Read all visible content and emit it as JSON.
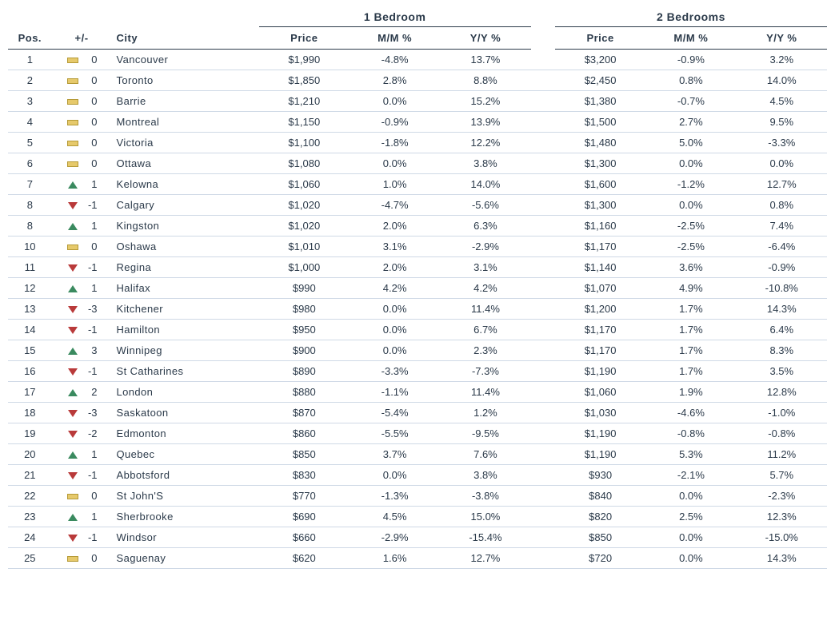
{
  "headers": {
    "group1": "1 Bedroom",
    "group2": "2 Bedrooms",
    "pos": "Pos.",
    "pm": "+/-",
    "city": "City",
    "price": "Price",
    "mm": "M/M %",
    "yy": "Y/Y %"
  },
  "styling": {
    "font_family": "Verdana",
    "text_color": "#2b3a4a",
    "row_border_color": "#cfd9e6",
    "header_border_color": "#2b3a4a",
    "icon_flat_fill": "#e6c96b",
    "icon_flat_border": "#b59a36",
    "icon_up_color": "#3a8a5f",
    "icon_down_color": "#b93a3a",
    "font_size_body": 13,
    "font_size_group_header": 14
  },
  "rows": [
    {
      "pos": "1",
      "dir": "flat",
      "delta": "0",
      "city": "Vancouver",
      "p1": "$1,990",
      "mm1": "-4.8%",
      "yy1": "13.7%",
      "p2": "$3,200",
      "mm2": "-0.9%",
      "yy2": "3.2%"
    },
    {
      "pos": "2",
      "dir": "flat",
      "delta": "0",
      "city": "Toronto",
      "p1": "$1,850",
      "mm1": "2.8%",
      "yy1": "8.8%",
      "p2": "$2,450",
      "mm2": "0.8%",
      "yy2": "14.0%"
    },
    {
      "pos": "3",
      "dir": "flat",
      "delta": "0",
      "city": "Barrie",
      "p1": "$1,210",
      "mm1": "0.0%",
      "yy1": "15.2%",
      "p2": "$1,380",
      "mm2": "-0.7%",
      "yy2": "4.5%"
    },
    {
      "pos": "4",
      "dir": "flat",
      "delta": "0",
      "city": "Montreal",
      "p1": "$1,150",
      "mm1": "-0.9%",
      "yy1": "13.9%",
      "p2": "$1,500",
      "mm2": "2.7%",
      "yy2": "9.5%"
    },
    {
      "pos": "5",
      "dir": "flat",
      "delta": "0",
      "city": "Victoria",
      "p1": "$1,100",
      "mm1": "-1.8%",
      "yy1": "12.2%",
      "p2": "$1,480",
      "mm2": "5.0%",
      "yy2": "-3.3%"
    },
    {
      "pos": "6",
      "dir": "flat",
      "delta": "0",
      "city": "Ottawa",
      "p1": "$1,080",
      "mm1": "0.0%",
      "yy1": "3.8%",
      "p2": "$1,300",
      "mm2": "0.0%",
      "yy2": "0.0%"
    },
    {
      "pos": "7",
      "dir": "up",
      "delta": "1",
      "city": "Kelowna",
      "p1": "$1,060",
      "mm1": "1.0%",
      "yy1": "14.0%",
      "p2": "$1,600",
      "mm2": "-1.2%",
      "yy2": "12.7%"
    },
    {
      "pos": "8",
      "dir": "down",
      "delta": "-1",
      "city": "Calgary",
      "p1": "$1,020",
      "mm1": "-4.7%",
      "yy1": "-5.6%",
      "p2": "$1,300",
      "mm2": "0.0%",
      "yy2": "0.8%"
    },
    {
      "pos": "8",
      "dir": "up",
      "delta": "1",
      "city": "Kingston",
      "p1": "$1,020",
      "mm1": "2.0%",
      "yy1": "6.3%",
      "p2": "$1,160",
      "mm2": "-2.5%",
      "yy2": "7.4%"
    },
    {
      "pos": "10",
      "dir": "flat",
      "delta": "0",
      "city": "Oshawa",
      "p1": "$1,010",
      "mm1": "3.1%",
      "yy1": "-2.9%",
      "p2": "$1,170",
      "mm2": "-2.5%",
      "yy2": "-6.4%"
    },
    {
      "pos": "11",
      "dir": "down",
      "delta": "-1",
      "city": "Regina",
      "p1": "$1,000",
      "mm1": "2.0%",
      "yy1": "3.1%",
      "p2": "$1,140",
      "mm2": "3.6%",
      "yy2": "-0.9%"
    },
    {
      "pos": "12",
      "dir": "up",
      "delta": "1",
      "city": "Halifax",
      "p1": "$990",
      "mm1": "4.2%",
      "yy1": "4.2%",
      "p2": "$1,070",
      "mm2": "4.9%",
      "yy2": "-10.8%"
    },
    {
      "pos": "13",
      "dir": "down",
      "delta": "-3",
      "city": "Kitchener",
      "p1": "$980",
      "mm1": "0.0%",
      "yy1": "11.4%",
      "p2": "$1,200",
      "mm2": "1.7%",
      "yy2": "14.3%"
    },
    {
      "pos": "14",
      "dir": "down",
      "delta": "-1",
      "city": "Hamilton",
      "p1": "$950",
      "mm1": "0.0%",
      "yy1": "6.7%",
      "p2": "$1,170",
      "mm2": "1.7%",
      "yy2": "6.4%"
    },
    {
      "pos": "15",
      "dir": "up",
      "delta": "3",
      "city": "Winnipeg",
      "p1": "$900",
      "mm1": "0.0%",
      "yy1": "2.3%",
      "p2": "$1,170",
      "mm2": "1.7%",
      "yy2": "8.3%"
    },
    {
      "pos": "16",
      "dir": "down",
      "delta": "-1",
      "city": "St Catharines",
      "p1": "$890",
      "mm1": "-3.3%",
      "yy1": "-7.3%",
      "p2": "$1,190",
      "mm2": "1.7%",
      "yy2": "3.5%"
    },
    {
      "pos": "17",
      "dir": "up",
      "delta": "2",
      "city": "London",
      "p1": "$880",
      "mm1": "-1.1%",
      "yy1": "11.4%",
      "p2": "$1,060",
      "mm2": "1.9%",
      "yy2": "12.8%"
    },
    {
      "pos": "18",
      "dir": "down",
      "delta": "-3",
      "city": "Saskatoon",
      "p1": "$870",
      "mm1": "-5.4%",
      "yy1": "1.2%",
      "p2": "$1,030",
      "mm2": "-4.6%",
      "yy2": "-1.0%"
    },
    {
      "pos": "19",
      "dir": "down",
      "delta": "-2",
      "city": "Edmonton",
      "p1": "$860",
      "mm1": "-5.5%",
      "yy1": "-9.5%",
      "p2": "$1,190",
      "mm2": "-0.8%",
      "yy2": "-0.8%"
    },
    {
      "pos": "20",
      "dir": "up",
      "delta": "1",
      "city": "Quebec",
      "p1": "$850",
      "mm1": "3.7%",
      "yy1": "7.6%",
      "p2": "$1,190",
      "mm2": "5.3%",
      "yy2": "11.2%"
    },
    {
      "pos": "21",
      "dir": "down",
      "delta": "-1",
      "city": "Abbotsford",
      "p1": "$830",
      "mm1": "0.0%",
      "yy1": "3.8%",
      "p2": "$930",
      "mm2": "-2.1%",
      "yy2": "5.7%"
    },
    {
      "pos": "22",
      "dir": "flat",
      "delta": "0",
      "city": "St John'S",
      "p1": "$770",
      "mm1": "-1.3%",
      "yy1": "-3.8%",
      "p2": "$840",
      "mm2": "0.0%",
      "yy2": "-2.3%"
    },
    {
      "pos": "23",
      "dir": "up",
      "delta": "1",
      "city": "Sherbrooke",
      "p1": "$690",
      "mm1": "4.5%",
      "yy1": "15.0%",
      "p2": "$820",
      "mm2": "2.5%",
      "yy2": "12.3%"
    },
    {
      "pos": "24",
      "dir": "down",
      "delta": "-1",
      "city": "Windsor",
      "p1": "$660",
      "mm1": "-2.9%",
      "yy1": "-15.4%",
      "p2": "$850",
      "mm2": "0.0%",
      "yy2": "-15.0%"
    },
    {
      "pos": "25",
      "dir": "flat",
      "delta": "0",
      "city": "Saguenay",
      "p1": "$620",
      "mm1": "1.6%",
      "yy1": "12.7%",
      "p2": "$720",
      "mm2": "0.0%",
      "yy2": "14.3%"
    }
  ]
}
